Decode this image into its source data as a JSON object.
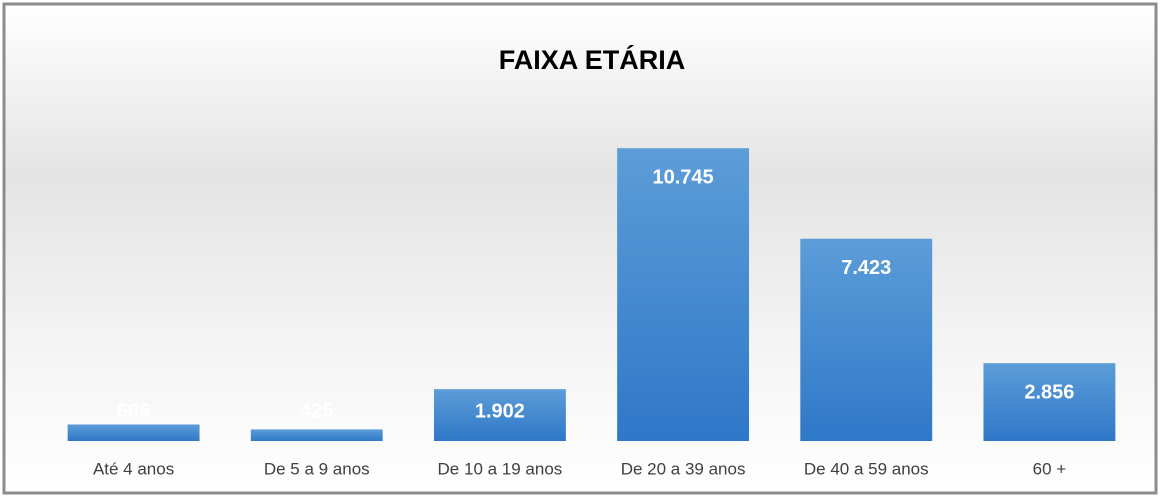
{
  "chart_data": {
    "type": "bar",
    "title": "FAIXA ETÁRIA",
    "categories": [
      "Até 4 anos",
      "De 5 a 9 anos",
      "De 10 a 19 anos",
      "De 20 a 39 anos",
      "De 40 a 59 anos",
      "60 +"
    ],
    "values": [
      606,
      425,
      1902,
      10745,
      7423,
      2856
    ],
    "value_labels": [
      "606",
      "425",
      "1.902",
      "10.745",
      "7.423",
      "2.856"
    ],
    "color": "#4a8ad4",
    "ylim": [
      0,
      12000
    ]
  }
}
